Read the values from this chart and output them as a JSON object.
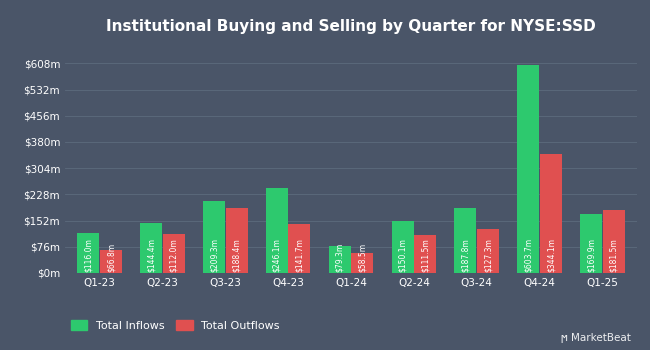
{
  "title": "Institutional Buying and Selling by Quarter for NYSE:SSD",
  "quarters": [
    "Q1-23",
    "Q2-23",
    "Q3-23",
    "Q4-23",
    "Q1-24",
    "Q2-24",
    "Q3-24",
    "Q4-24",
    "Q1-25"
  ],
  "inflows": [
    116.0,
    144.4,
    209.3,
    246.1,
    79.3,
    150.1,
    187.8,
    603.7,
    169.9
  ],
  "outflows": [
    66.8,
    112.0,
    188.4,
    141.7,
    58.5,
    111.5,
    127.3,
    344.1,
    181.5
  ],
  "inflow_labels": [
    "$116.0m",
    "$144.4m",
    "$209.3m",
    "$246.1m",
    "$79.3m",
    "$150.1m",
    "$187.8m",
    "$603.7m",
    "$169.9m"
  ],
  "outflow_labels": [
    "$66.8m",
    "$112.0m",
    "$188.4m",
    "$141.7m",
    "$58.5m",
    "$111.5m",
    "$127.3m",
    "$344.1m",
    "$181.5m"
  ],
  "inflow_color": "#2dc96e",
  "outflow_color": "#e05050",
  "bg_color": "#4a5568",
  "text_color": "#ffffff",
  "grid_color": "#5d6b7d",
  "ytick_labels": [
    "$0m",
    "$76m",
    "$152m",
    "$228m",
    "$304m",
    "$380m",
    "$456m",
    "$532m",
    "$608m"
  ],
  "ytick_values": [
    0,
    76,
    152,
    228,
    304,
    380,
    456,
    532,
    608
  ],
  "ylim": [
    0,
    670
  ],
  "legend_inflow": "Total Inflows",
  "legend_outflow": "Total Outflows",
  "bar_width": 0.35,
  "label_fontsize": 5.5,
  "tick_fontsize": 7.5,
  "title_fontsize": 11.0
}
